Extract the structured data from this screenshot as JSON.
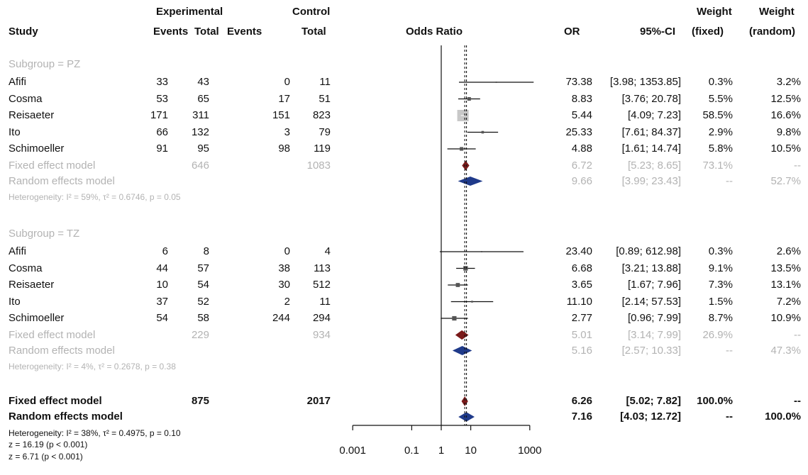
{
  "chart_data": {
    "type": "forest",
    "columns": {
      "study": "Study",
      "experimental": "Experimental",
      "control": "Control",
      "events": "Events",
      "total": "Total",
      "plot_title": "Odds Ratio",
      "or": "OR",
      "ci": "95%-CI",
      "weight": "Weight",
      "weight_fixed": "(fixed)",
      "weight_random": "(random)"
    },
    "x_scale": "log",
    "x_ticks": [
      0.001,
      0.1,
      1,
      10,
      1000
    ],
    "x_tick_labels": [
      "0.001",
      "0.1",
      "1",
      "10",
      "1000"
    ],
    "overall_fixed_or": 6.26,
    "overall_random_or": 7.16,
    "subgroups": [
      {
        "label": "Subgroup = PZ",
        "studies": [
          {
            "name": "Afifi",
            "e_events": "33",
            "e_total": "43",
            "c_events": "0",
            "c_total": "11",
            "or": 73.38,
            "lo": 3.98,
            "hi": 1353.85,
            "or_text": "73.38",
            "ci_text": "[3.98; 1353.85]",
            "w_fixed": "0.3%",
            "w_random": "3.2%",
            "w": 0.3
          },
          {
            "name": "Cosma",
            "e_events": "53",
            "e_total": "65",
            "c_events": "17",
            "c_total": "51",
            "or": 8.83,
            "lo": 3.76,
            "hi": 20.78,
            "or_text": "8.83",
            "ci_text": "[3.76; 20.78]",
            "w_fixed": "5.5%",
            "w_random": "12.5%",
            "w": 5.5
          },
          {
            "name": "Reisaeter",
            "e_events": "171",
            "e_total": "311",
            "c_events": "151",
            "c_total": "823",
            "or": 5.44,
            "lo": 4.09,
            "hi": 7.23,
            "or_text": "5.44",
            "ci_text": "[4.09; 7.23]",
            "w_fixed": "58.5%",
            "w_random": "16.6%",
            "w": 58.5
          },
          {
            "name": "Ito",
            "e_events": "66",
            "e_total": "132",
            "c_events": "3",
            "c_total": "79",
            "or": 25.33,
            "lo": 7.61,
            "hi": 84.37,
            "or_text": "25.33",
            "ci_text": "[7.61; 84.37]",
            "w_fixed": "2.9%",
            "w_random": "9.8%",
            "w": 2.9
          },
          {
            "name": "Schimoeller",
            "e_events": "91",
            "e_total": "95",
            "c_events": "98",
            "c_total": "119",
            "or": 4.88,
            "lo": 1.61,
            "hi": 14.74,
            "or_text": "4.88",
            "ci_text": "[1.61; 14.74]",
            "w_fixed": "5.8%",
            "w_random": "10.5%",
            "w": 5.8
          }
        ],
        "fixed": {
          "name": "Fixed effect model",
          "e_total": "646",
          "c_total": "1083",
          "or": 6.72,
          "lo": 5.23,
          "hi": 8.65,
          "or_text": "6.72",
          "ci_text": "[5.23; 8.65]",
          "w_fixed": "73.1%",
          "w_random": "--"
        },
        "random": {
          "name": "Random effects model",
          "or": 9.66,
          "lo": 3.99,
          "hi": 23.43,
          "or_text": "9.66",
          "ci_text": "[3.99; 23.43]",
          "w_fixed": "--",
          "w_random": "52.7%"
        },
        "heterogeneity": "Heterogeneity: I² = 59%, τ² = 0.6746, p = 0.05"
      },
      {
        "label": "Subgroup = TZ",
        "studies": [
          {
            "name": "Afifi",
            "e_events": "6",
            "e_total": "8",
            "c_events": "0",
            "c_total": "4",
            "or": 23.4,
            "lo": 0.89,
            "hi": 612.98,
            "or_text": "23.40",
            "ci_text": "[0.89; 612.98]",
            "w_fixed": "0.3%",
            "w_random": "2.6%",
            "w": 0.3
          },
          {
            "name": "Cosma",
            "e_events": "44",
            "e_total": "57",
            "c_events": "38",
            "c_total": "113",
            "or": 6.68,
            "lo": 3.21,
            "hi": 13.88,
            "or_text": "6.68",
            "ci_text": "[3.21; 13.88]",
            "w_fixed": "9.1%",
            "w_random": "13.5%",
            "w": 9.1
          },
          {
            "name": "Reisaeter",
            "e_events": "10",
            "e_total": "54",
            "c_events": "30",
            "c_total": "512",
            "or": 3.65,
            "lo": 1.67,
            "hi": 7.96,
            "or_text": "3.65",
            "ci_text": "[1.67; 7.96]",
            "w_fixed": "7.3%",
            "w_random": "13.1%",
            "w": 7.3
          },
          {
            "name": "Ito",
            "e_events": "37",
            "e_total": "52",
            "c_events": "2",
            "c_total": "11",
            "or": 11.1,
            "lo": 2.14,
            "hi": 57.53,
            "or_text": "11.10",
            "ci_text": "[2.14; 57.53]",
            "w_fixed": "1.5%",
            "w_random": "7.2%",
            "w": 1.5
          },
          {
            "name": "Schimoeller",
            "e_events": "54",
            "e_total": "58",
            "c_events": "244",
            "c_total": "294",
            "or": 2.77,
            "lo": 0.96,
            "hi": 7.99,
            "or_text": "2.77",
            "ci_text": "[0.96; 7.99]",
            "w_fixed": "8.7%",
            "w_random": "10.9%",
            "w": 8.7
          }
        ],
        "fixed": {
          "name": "Fixed effect model",
          "e_total": "229",
          "c_total": "934",
          "or": 5.01,
          "lo": 3.14,
          "hi": 7.99,
          "or_text": "5.01",
          "ci_text": "[3.14; 7.99]",
          "w_fixed": "26.9%",
          "w_random": "--"
        },
        "random": {
          "name": "Random effects model",
          "or": 5.16,
          "lo": 2.57,
          "hi": 10.33,
          "or_text": "5.16",
          "ci_text": "[2.57; 10.33]",
          "w_fixed": "--",
          "w_random": "47.3%"
        },
        "heterogeneity": "Heterogeneity: I² = 4%, τ² = 0.2678, p = 0.38"
      }
    ],
    "overall": {
      "fixed": {
        "name": "Fixed effect model",
        "e_total": "875",
        "c_total": "2017",
        "or": 6.26,
        "lo": 5.02,
        "hi": 7.82,
        "or_text": "6.26",
        "ci_text": "[5.02; 7.82]",
        "w_fixed": "100.0%",
        "w_random": "--"
      },
      "random": {
        "name": "Random effects model",
        "or": 7.16,
        "lo": 4.03,
        "hi": 12.72,
        "or_text": "7.16",
        "ci_text": "[4.03; 12.72]",
        "w_fixed": "--",
        "w_random": "100.0%"
      },
      "heterogeneity": "Heterogeneity: I² = 38%, τ² = 0.4975, p = 0.10",
      "tests": [
        "z = 16.19 (p < 0.001)",
        "z = 6.71 (p < 0.001)"
      ]
    },
    "colors": {
      "text": "#111111",
      "grey": "#b3b3b3",
      "fixed_diamond": "#7a1a1a",
      "random_diamond": "#1f3a8a",
      "pooled_square": "#c8c8c8"
    }
  }
}
